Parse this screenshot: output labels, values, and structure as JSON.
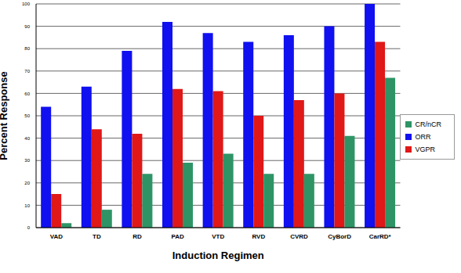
{
  "chart_data": {
    "type": "bar",
    "x_label": "Induction Regimen",
    "y_label": "Percent Response",
    "categories": [
      "VAD",
      "TD",
      "RD",
      "PAD",
      "VTD",
      "RVD",
      "CVRD",
      "CyBorD",
      "CarRD*"
    ],
    "series": [
      {
        "name": "ORR",
        "color": "#1010f0",
        "values": [
          54,
          63,
          79,
          92,
          87,
          83,
          86,
          90,
          100
        ]
      },
      {
        "name": "VGPR",
        "color": "#e01818",
        "values": [
          15,
          44,
          42,
          62,
          61,
          50,
          57,
          60,
          83
        ]
      },
      {
        "name": "CR/nCR",
        "color": "#2e9466",
        "values": [
          2,
          8,
          24,
          29,
          33,
          24,
          24,
          41,
          67
        ]
      }
    ],
    "ylim": [
      0,
      100
    ],
    "yticks": [
      0,
      10,
      20,
      30,
      40,
      50,
      60,
      70,
      80,
      90,
      100
    ],
    "grid": true,
    "legend": "right"
  }
}
